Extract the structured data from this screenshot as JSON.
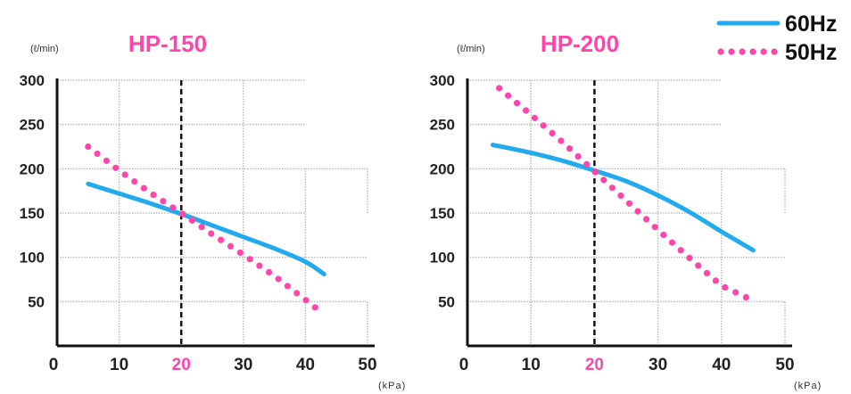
{
  "legend": {
    "placement": "top-right",
    "entries": [
      {
        "label": "60Hz",
        "color": "#22aaee",
        "style": "solid"
      },
      {
        "label": "50Hz",
        "color": "#ff44aa",
        "style": "dotted"
      }
    ]
  },
  "colors": {
    "title": "#ff44aa",
    "highlight_tick": "#ff44aa",
    "axis": "#111111",
    "grid": "#bbbbbb",
    "ref_line": "#111111"
  },
  "chart_data": [
    {
      "type": "line",
      "title": "HP-150",
      "ylabel": "(ℓ/min)",
      "xlabel": "(kPa)",
      "xlim": [
        0,
        50
      ],
      "ylim": [
        0,
        300
      ],
      "x_ticks": [
        "0",
        "10",
        "20",
        "30",
        "40",
        "50"
      ],
      "y_ticks": [
        "50",
        "100",
        "150",
        "200",
        "250",
        "300"
      ],
      "highlight_x_tick": "20",
      "reference_x": 20,
      "grid": true,
      "series": [
        {
          "name": "60Hz",
          "x": [
            5,
            10,
            15,
            20,
            25,
            30,
            35,
            40,
            43
          ],
          "y": [
            183,
            172,
            161,
            149,
            136,
            123,
            110,
            95,
            81
          ]
        },
        {
          "name": "50Hz",
          "x": [
            5,
            10,
            15,
            20,
            25,
            30,
            35,
            40,
            42
          ],
          "y": [
            225,
            198,
            173,
            150,
            126,
            103,
            79,
            52,
            41
          ]
        }
      ]
    },
    {
      "type": "line",
      "title": "HP-200",
      "ylabel": "(ℓ/min)",
      "xlabel": "(kPa)",
      "xlim": [
        0,
        50
      ],
      "ylim": [
        0,
        300
      ],
      "x_ticks": [
        "0",
        "10",
        "20",
        "30",
        "40",
        "50"
      ],
      "y_ticks": [
        "50",
        "100",
        "150",
        "200",
        "250",
        "300"
      ],
      "highlight_x_tick": "20",
      "reference_x": 20,
      "grid": true,
      "series": [
        {
          "name": "60Hz",
          "x": [
            4,
            10,
            15,
            20,
            25,
            30,
            35,
            40,
            45
          ],
          "y": [
            227,
            218,
            209,
            198,
            186,
            170,
            151,
            129,
            108
          ]
        },
        {
          "name": "50Hz",
          "x": [
            5,
            10,
            15,
            20,
            25,
            30,
            35,
            40,
            45
          ],
          "y": [
            291,
            261,
            230,
            197,
            164,
            131,
            99,
            68,
            51
          ]
        }
      ]
    }
  ]
}
